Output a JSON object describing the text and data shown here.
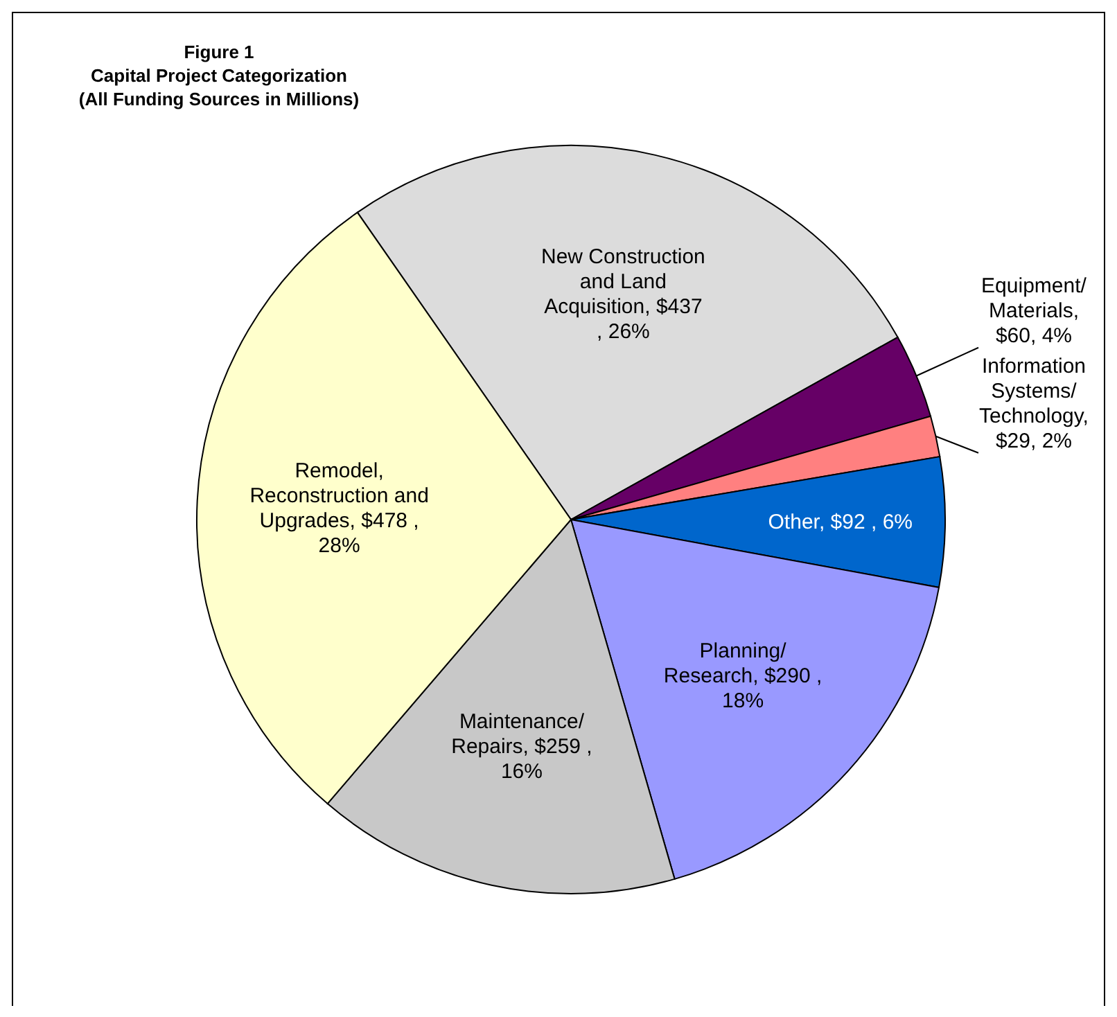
{
  "chart_data": {
    "type": "pie",
    "title": "Figure 1\nCapital Project Categorization\n(All Funding Sources in Millions)",
    "categories": [
      "New Construction and Land Acquisition",
      "Equipment/ Materials",
      "Information Systems/ Technology",
      "Other",
      "Planning/ Research",
      "Maintenance/ Repairs",
      "Remodel, Reconstruction and Upgrades"
    ],
    "values": [
      437,
      60,
      29,
      92,
      290,
      259,
      478
    ],
    "value_labels": [
      ", $437 , 26%",
      ", $60, 4%",
      ", $29, 2%",
      ", $92 , 6%",
      ", $290 , 18%",
      ", $259 , 16%",
      ", $478 , 28%"
    ],
    "colors": [
      "#dcdcdc",
      "#660066",
      "#ff8080",
      "#0066cc",
      "#9999ff",
      "#c8c8c8",
      "#ffffcc"
    ],
    "legend": false
  }
}
